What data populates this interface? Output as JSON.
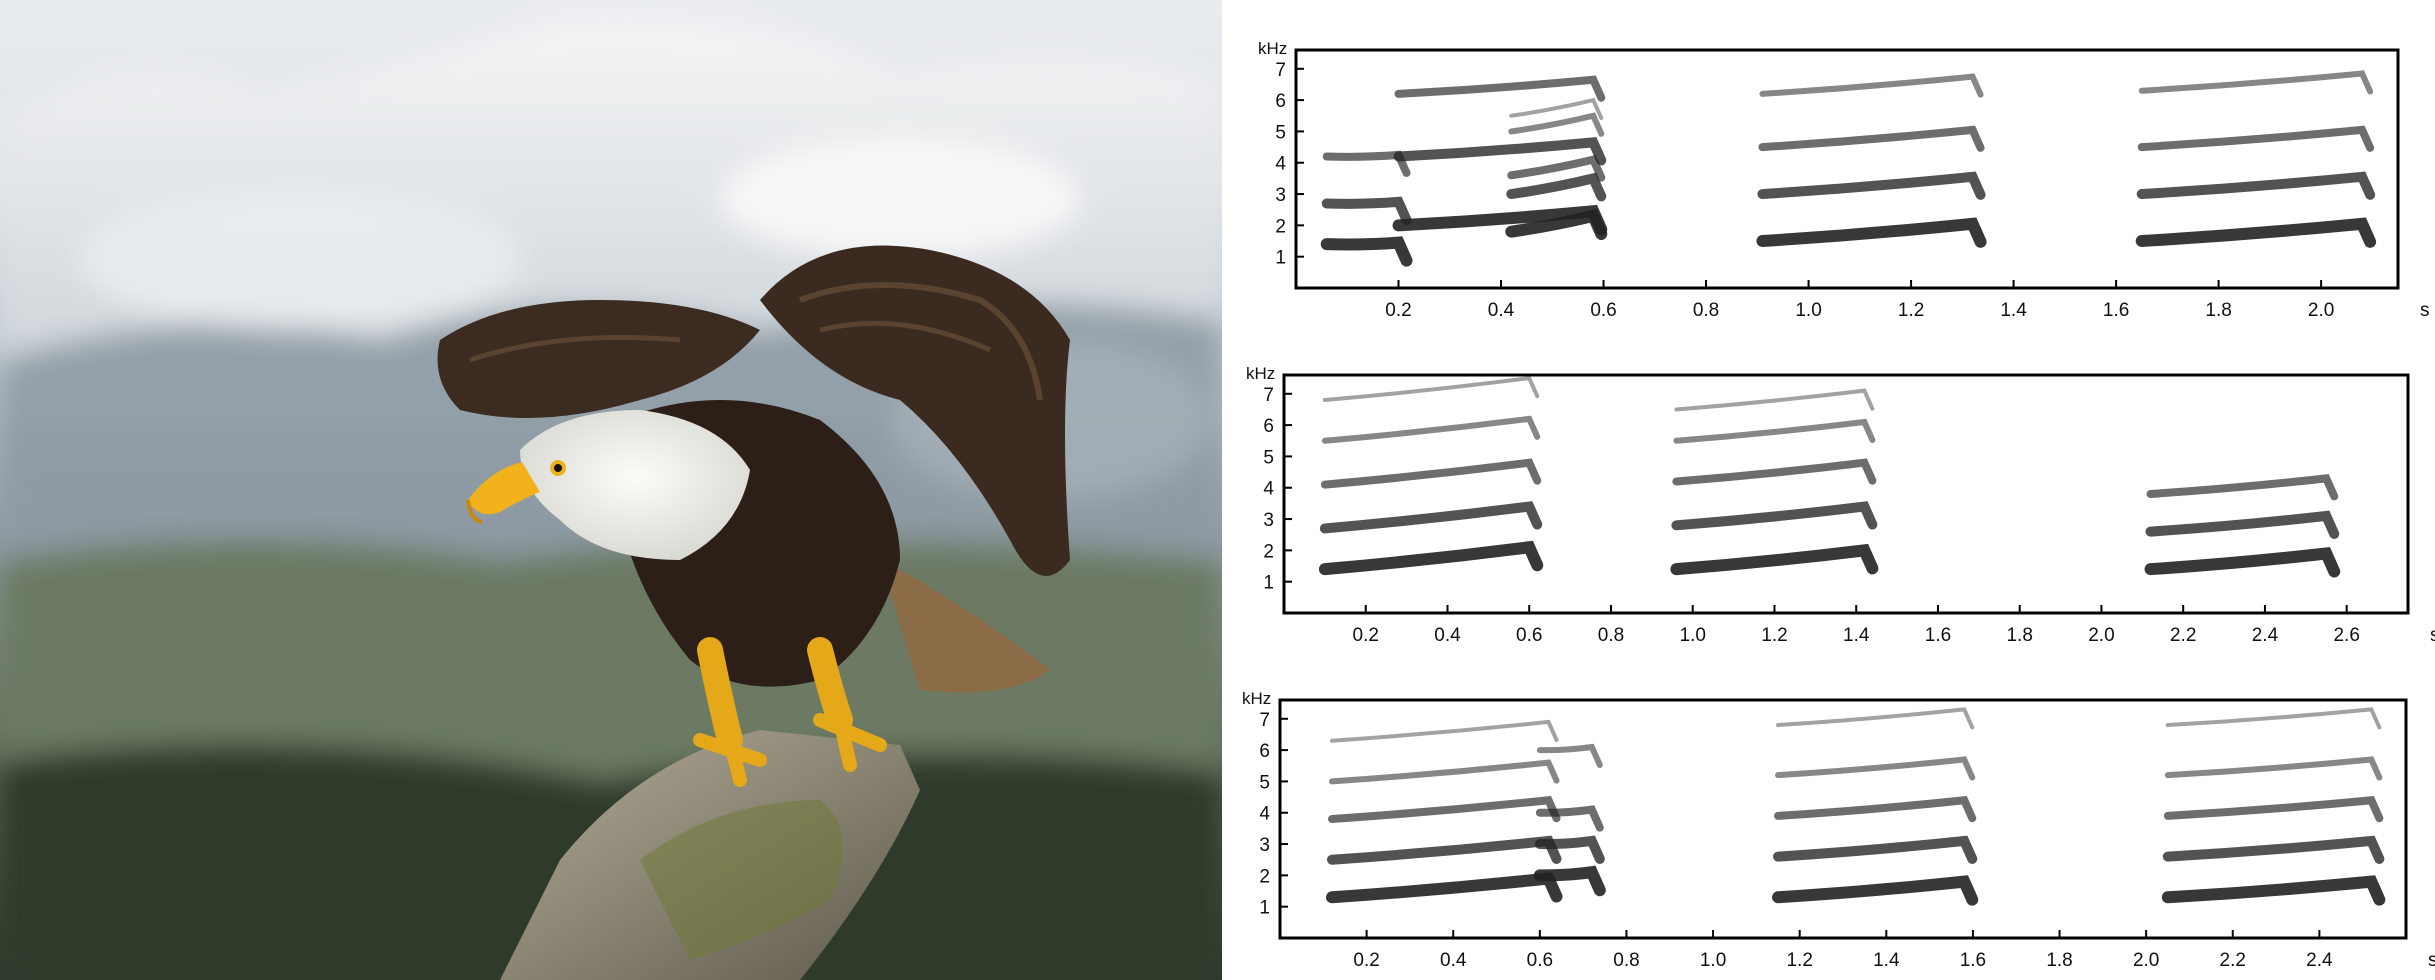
{
  "photo": {
    "subject_icon": "bald-eagle-photo",
    "colors": {
      "beak": "#f2b21b",
      "head": "#f1f1ee",
      "body": "#2c1f17",
      "wing": "#3a2a1f",
      "stump": "#8a8472",
      "moss": "#6f7a38"
    }
  },
  "spectrograms": [
    {
      "y_unit": "kHz",
      "x_unit": "s",
      "y_ticks": [
        "1",
        "2",
        "3",
        "4",
        "5",
        "6",
        "7"
      ],
      "x_ticks": [
        "0.2",
        "0.4",
        "0.6",
        "0.8",
        "1.0",
        "1.2",
        "1.4",
        "1.6",
        "1.8",
        "2.0"
      ],
      "x_range": [
        0,
        2.15
      ],
      "y_range": [
        0,
        7.6
      ],
      "calls": [
        {
          "t0": 0.06,
          "t1": 0.2,
          "f0": [
            1.4,
            2.7,
            4.2
          ],
          "slope": 0.05
        },
        {
          "t0": 0.2,
          "t1": 0.58,
          "f0": [
            2.0,
            4.2,
            6.2
          ],
          "slope": 0.45
        },
        {
          "t0": 0.42,
          "t1": 0.58,
          "f0": [
            1.8,
            3.0,
            3.6,
            5.0,
            5.5
          ],
          "slope": 0.5
        },
        {
          "t0": 0.91,
          "t1": 1.32,
          "f0": [
            1.5,
            3.0,
            4.5,
            6.2
          ],
          "slope": 0.55
        },
        {
          "t0": 1.65,
          "t1": 2.08,
          "f0": [
            1.5,
            3.0,
            4.5,
            6.3
          ],
          "slope": 0.55
        }
      ]
    },
    {
      "y_unit": "kHz",
      "x_unit": "s",
      "y_ticks": [
        "1",
        "2",
        "3",
        "4",
        "5",
        "6",
        "7"
      ],
      "x_ticks": [
        "0.2",
        "0.4",
        "0.6",
        "0.8",
        "1.0",
        "1.2",
        "1.4",
        "1.6",
        "1.8",
        "2.0",
        "2.2",
        "2.4",
        "2.6"
      ],
      "x_range": [
        0,
        2.75
      ],
      "y_range": [
        0,
        7.6
      ],
      "calls": [
        {
          "t0": 0.1,
          "t1": 0.6,
          "f0": [
            1.4,
            2.7,
            4.1,
            5.5,
            6.8
          ],
          "slope": 0.7
        },
        {
          "t0": 0.96,
          "t1": 1.42,
          "f0": [
            1.4,
            2.8,
            4.2,
            5.5,
            6.5
          ],
          "slope": 0.6
        },
        {
          "t0": 2.12,
          "t1": 2.55,
          "f0": [
            1.4,
            2.6,
            3.8
          ],
          "slope": 0.5
        }
      ]
    },
    {
      "y_unit": "kHz",
      "x_unit": "s",
      "y_ticks": [
        "1",
        "2",
        "3",
        "4",
        "5",
        "6",
        "7"
      ],
      "x_ticks": [
        "0.2",
        "0.4",
        "0.6",
        "0.8",
        "1.0",
        "1.2",
        "1.4",
        "1.6",
        "1.8",
        "2.0",
        "2.2",
        "2.4"
      ],
      "x_range": [
        0,
        2.6
      ],
      "y_range": [
        0,
        7.6
      ],
      "calls": [
        {
          "t0": 0.12,
          "t1": 0.62,
          "f0": [
            1.3,
            2.5,
            3.8,
            5.0,
            6.3
          ],
          "slope": 0.6
        },
        {
          "t0": 0.6,
          "t1": 0.72,
          "f0": [
            2.0,
            3.0,
            4.0,
            6.0
          ],
          "slope": 0.1
        },
        {
          "t0": 1.15,
          "t1": 1.58,
          "f0": [
            1.3,
            2.6,
            3.9,
            5.2,
            6.8
          ],
          "slope": 0.5
        },
        {
          "t0": 2.05,
          "t1": 2.52,
          "f0": [
            1.3,
            2.6,
            3.9,
            5.2,
            6.8
          ],
          "slope": 0.5
        }
      ]
    }
  ]
}
